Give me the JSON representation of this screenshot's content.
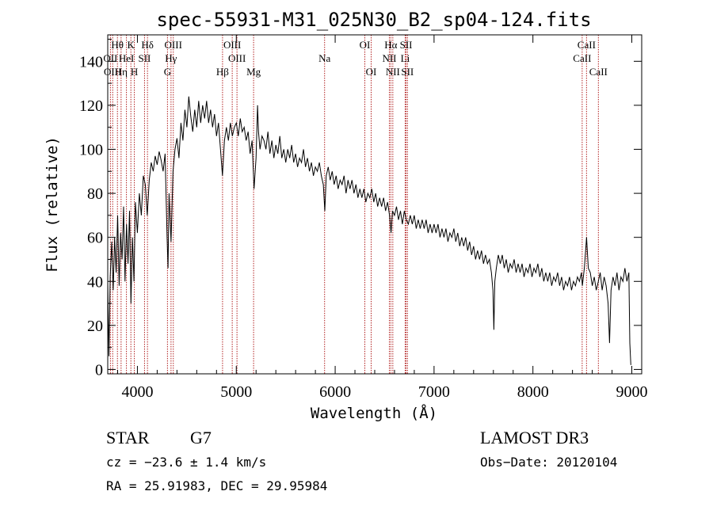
{
  "chart_data": {
    "type": "line",
    "title": "spec-55931-M31_025N30_B2_sp04-124.fits",
    "xlabel": "Wavelength (Å)",
    "ylabel": "Flux (relative)",
    "xlim": [
      3700,
      9100
    ],
    "ylim": [
      -2,
      152
    ],
    "xticks": [
      4000,
      5000,
      6000,
      7000,
      8000,
      9000
    ],
    "yticks": [
      0,
      20,
      40,
      60,
      80,
      100,
      120,
      140
    ],
    "line_color": "#000000",
    "marker_color": "#b22222",
    "spectrum_points": [
      [
        3700,
        40
      ],
      [
        3712,
        6
      ],
      [
        3725,
        42
      ],
      [
        3740,
        58
      ],
      [
        3755,
        36
      ],
      [
        3770,
        60
      ],
      [
        3785,
        44
      ],
      [
        3800,
        70
      ],
      [
        3815,
        38
      ],
      [
        3830,
        62
      ],
      [
        3845,
        50
      ],
      [
        3860,
        74
      ],
      [
        3875,
        40
      ],
      [
        3890,
        66
      ],
      [
        3905,
        48
      ],
      [
        3920,
        72
      ],
      [
        3935,
        30
      ],
      [
        3950,
        60
      ],
      [
        3965,
        40
      ],
      [
        3980,
        76
      ],
      [
        4000,
        62
      ],
      [
        4020,
        80
      ],
      [
        4040,
        70
      ],
      [
        4060,
        88
      ],
      [
        4080,
        84
      ],
      [
        4100,
        70
      ],
      [
        4120,
        86
      ],
      [
        4140,
        94
      ],
      [
        4160,
        90
      ],
      [
        4180,
        97
      ],
      [
        4200,
        93
      ],
      [
        4220,
        99
      ],
      [
        4240,
        95
      ],
      [
        4260,
        90
      ],
      [
        4280,
        98
      ],
      [
        4300,
        60
      ],
      [
        4310,
        46
      ],
      [
        4320,
        80
      ],
      [
        4340,
        58
      ],
      [
        4360,
        90
      ],
      [
        4380,
        100
      ],
      [
        4400,
        105
      ],
      [
        4420,
        96
      ],
      [
        4440,
        112
      ],
      [
        4460,
        104
      ],
      [
        4480,
        118
      ],
      [
        4500,
        110
      ],
      [
        4520,
        124
      ],
      [
        4540,
        115
      ],
      [
        4560,
        108
      ],
      [
        4580,
        118
      ],
      [
        4600,
        110
      ],
      [
        4620,
        122
      ],
      [
        4640,
        112
      ],
      [
        4660,
        120
      ],
      [
        4680,
        114
      ],
      [
        4700,
        122
      ],
      [
        4720,
        112
      ],
      [
        4740,
        118
      ],
      [
        4760,
        110
      ],
      [
        4780,
        116
      ],
      [
        4800,
        106
      ],
      [
        4820,
        112
      ],
      [
        4840,
        100
      ],
      [
        4860,
        88
      ],
      [
        4880,
        104
      ],
      [
        4900,
        110
      ],
      [
        4920,
        104
      ],
      [
        4940,
        112
      ],
      [
        4960,
        106
      ],
      [
        4980,
        110
      ],
      [
        5000,
        112
      ],
      [
        5020,
        106
      ],
      [
        5040,
        114
      ],
      [
        5060,
        108
      ],
      [
        5080,
        110
      ],
      [
        5100,
        104
      ],
      [
        5120,
        108
      ],
      [
        5140,
        98
      ],
      [
        5160,
        104
      ],
      [
        5180,
        82
      ],
      [
        5200,
        96
      ],
      [
        5215,
        120
      ],
      [
        5225,
        108
      ],
      [
        5240,
        100
      ],
      [
        5260,
        106
      ],
      [
        5280,
        104
      ],
      [
        5300,
        100
      ],
      [
        5320,
        108
      ],
      [
        5340,
        98
      ],
      [
        5360,
        104
      ],
      [
        5380,
        96
      ],
      [
        5400,
        102
      ],
      [
        5420,
        98
      ],
      [
        5440,
        106
      ],
      [
        5460,
        96
      ],
      [
        5480,
        100
      ],
      [
        5500,
        94
      ],
      [
        5520,
        100
      ],
      [
        5540,
        96
      ],
      [
        5560,
        102
      ],
      [
        5580,
        94
      ],
      [
        5600,
        98
      ],
      [
        5620,
        92
      ],
      [
        5640,
        96
      ],
      [
        5660,
        94
      ],
      [
        5680,
        100
      ],
      [
        5700,
        92
      ],
      [
        5720,
        96
      ],
      [
        5740,
        90
      ],
      [
        5760,
        94
      ],
      [
        5780,
        88
      ],
      [
        5800,
        92
      ],
      [
        5820,
        90
      ],
      [
        5840,
        94
      ],
      [
        5860,
        88
      ],
      [
        5880,
        84
      ],
      [
        5895,
        72
      ],
      [
        5910,
        88
      ],
      [
        5930,
        92
      ],
      [
        5950,
        86
      ],
      [
        5970,
        90
      ],
      [
        5990,
        84
      ],
      [
        6010,
        88
      ],
      [
        6030,
        82
      ],
      [
        6050,
        86
      ],
      [
        6070,
        84
      ],
      [
        6090,
        88
      ],
      [
        6110,
        80
      ],
      [
        6130,
        86
      ],
      [
        6150,
        82
      ],
      [
        6170,
        86
      ],
      [
        6190,
        80
      ],
      [
        6210,
        84
      ],
      [
        6230,
        78
      ],
      [
        6250,
        82
      ],
      [
        6270,
        78
      ],
      [
        6290,
        82
      ],
      [
        6310,
        76
      ],
      [
        6330,
        80
      ],
      [
        6350,
        78
      ],
      [
        6370,
        82
      ],
      [
        6390,
        76
      ],
      [
        6410,
        80
      ],
      [
        6430,
        74
      ],
      [
        6450,
        78
      ],
      [
        6470,
        74
      ],
      [
        6490,
        78
      ],
      [
        6510,
        72
      ],
      [
        6530,
        76
      ],
      [
        6550,
        70
      ],
      [
        6565,
        62
      ],
      [
        6580,
        72
      ],
      [
        6600,
        70
      ],
      [
        6620,
        74
      ],
      [
        6640,
        68
      ],
      [
        6660,
        72
      ],
      [
        6680,
        66
      ],
      [
        6700,
        72
      ],
      [
        6720,
        68
      ],
      [
        6740,
        66
      ],
      [
        6760,
        70
      ],
      [
        6780,
        66
      ],
      [
        6800,
        70
      ],
      [
        6820,
        64
      ],
      [
        6840,
        68
      ],
      [
        6860,
        64
      ],
      [
        6880,
        68
      ],
      [
        6900,
        64
      ],
      [
        6920,
        68
      ],
      [
        6940,
        62
      ],
      [
        6960,
        66
      ],
      [
        6980,
        62
      ],
      [
        7000,
        66
      ],
      [
        7020,
        62
      ],
      [
        7040,
        66
      ],
      [
        7060,
        60
      ],
      [
        7080,
        64
      ],
      [
        7100,
        60
      ],
      [
        7120,
        64
      ],
      [
        7140,
        58
      ],
      [
        7160,
        62
      ],
      [
        7180,
        60
      ],
      [
        7200,
        64
      ],
      [
        7220,
        58
      ],
      [
        7240,
        62
      ],
      [
        7260,
        56
      ],
      [
        7280,
        60
      ],
      [
        7300,
        56
      ],
      [
        7320,
        60
      ],
      [
        7340,
        54
      ],
      [
        7360,
        58
      ],
      [
        7380,
        52
      ],
      [
        7400,
        56
      ],
      [
        7420,
        50
      ],
      [
        7440,
        54
      ],
      [
        7460,
        50
      ],
      [
        7480,
        54
      ],
      [
        7500,
        48
      ],
      [
        7520,
        52
      ],
      [
        7540,
        48
      ],
      [
        7560,
        50
      ],
      [
        7580,
        44
      ],
      [
        7595,
        36
      ],
      [
        7605,
        18
      ],
      [
        7615,
        40
      ],
      [
        7630,
        46
      ],
      [
        7650,
        52
      ],
      [
        7670,
        48
      ],
      [
        7690,
        52
      ],
      [
        7710,
        46
      ],
      [
        7730,
        50
      ],
      [
        7750,
        44
      ],
      [
        7770,
        48
      ],
      [
        7790,
        46
      ],
      [
        7810,
        50
      ],
      [
        7830,
        44
      ],
      [
        7850,
        48
      ],
      [
        7870,
        44
      ],
      [
        7890,
        48
      ],
      [
        7910,
        42
      ],
      [
        7930,
        46
      ],
      [
        7950,
        44
      ],
      [
        7970,
        48
      ],
      [
        7990,
        42
      ],
      [
        8010,
        46
      ],
      [
        8030,
        44
      ],
      [
        8050,
        48
      ],
      [
        8070,
        42
      ],
      [
        8090,
        46
      ],
      [
        8110,
        40
      ],
      [
        8130,
        44
      ],
      [
        8150,
        40
      ],
      [
        8170,
        44
      ],
      [
        8190,
        38
      ],
      [
        8210,
        42
      ],
      [
        8230,
        40
      ],
      [
        8250,
        44
      ],
      [
        8270,
        38
      ],
      [
        8290,
        42
      ],
      [
        8310,
        36
      ],
      [
        8330,
        40
      ],
      [
        8350,
        38
      ],
      [
        8370,
        42
      ],
      [
        8390,
        36
      ],
      [
        8410,
        40
      ],
      [
        8430,
        38
      ],
      [
        8450,
        42
      ],
      [
        8470,
        40
      ],
      [
        8490,
        44
      ],
      [
        8500,
        38
      ],
      [
        8520,
        46
      ],
      [
        8542,
        60
      ],
      [
        8560,
        46
      ],
      [
        8580,
        44
      ],
      [
        8600,
        38
      ],
      [
        8620,
        42
      ],
      [
        8640,
        36
      ],
      [
        8662,
        40
      ],
      [
        8680,
        44
      ],
      [
        8700,
        36
      ],
      [
        8720,
        42
      ],
      [
        8740,
        38
      ],
      [
        8760,
        30
      ],
      [
        8775,
        12
      ],
      [
        8790,
        36
      ],
      [
        8810,
        42
      ],
      [
        8830,
        38
      ],
      [
        8850,
        44
      ],
      [
        8870,
        36
      ],
      [
        8890,
        42
      ],
      [
        8910,
        40
      ],
      [
        8930,
        46
      ],
      [
        8950,
        40
      ],
      [
        8970,
        44
      ],
      [
        8980,
        12
      ],
      [
        8990,
        2
      ]
    ],
    "spectral_lines": [
      {
        "label": "Hθ",
        "wavelength": 3798,
        "row": 0
      },
      {
        "label": "K",
        "wavelength": 3934,
        "row": 0
      },
      {
        "label": "Hδ",
        "wavelength": 4102,
        "row": 0
      },
      {
        "label": "OIII",
        "wavelength": 4363,
        "row": 0
      },
      {
        "label": "OIII",
        "wavelength": 4959,
        "row": 0
      },
      {
        "label": "OI",
        "wavelength": 6300,
        "row": 0
      },
      {
        "label": "Hα",
        "wavelength": 6563,
        "row": 0
      },
      {
        "label": "SII",
        "wavelength": 6717,
        "row": 0
      },
      {
        "label": "CaII",
        "wavelength": 8542,
        "row": 0
      },
      {
        "label": "OII",
        "wavelength": 3727,
        "row": 1
      },
      {
        "label": "HeI",
        "wavelength": 3889,
        "row": 1
      },
      {
        "label": "SII",
        "wavelength": 4072,
        "row": 1
      },
      {
        "label": "Hγ",
        "wavelength": 4340,
        "row": 1
      },
      {
        "label": "OIII",
        "wavelength": 5007,
        "row": 1
      },
      {
        "label": "Na",
        "wavelength": 5893,
        "row": 1
      },
      {
        "label": "NII",
        "wavelength": 6548,
        "row": 1
      },
      {
        "label": "Li",
        "wavelength": 6708,
        "row": 1
      },
      {
        "label": "CaII",
        "wavelength": 8498,
        "row": 1
      },
      {
        "label": "OIII",
        "wavelength": 3750,
        "row": 2
      },
      {
        "label": "Hη",
        "wavelength": 3835,
        "row": 2
      },
      {
        "label": "H",
        "wavelength": 3969,
        "row": 2
      },
      {
        "label": "G",
        "wavelength": 4304,
        "row": 2
      },
      {
        "label": "Hβ",
        "wavelength": 4861,
        "row": 2
      },
      {
        "label": "Mg",
        "wavelength": 5175,
        "row": 2
      },
      {
        "label": "OI",
        "wavelength": 6364,
        "row": 2
      },
      {
        "label": "NII",
        "wavelength": 6583,
        "row": 2
      },
      {
        "label": "SII",
        "wavelength": 6731,
        "row": 2
      },
      {
        "label": "CaII",
        "wavelength": 8662,
        "row": 2
      }
    ]
  },
  "info": {
    "class": "STAR",
    "subclass": "G7",
    "redshift": "cz = −23.6 ± 1.4 km/s",
    "coords": "RA =  25.91983, DEC =  29.95984",
    "survey": "LAMOST DR3",
    "obs_date": "Obs−Date: 20120104"
  }
}
